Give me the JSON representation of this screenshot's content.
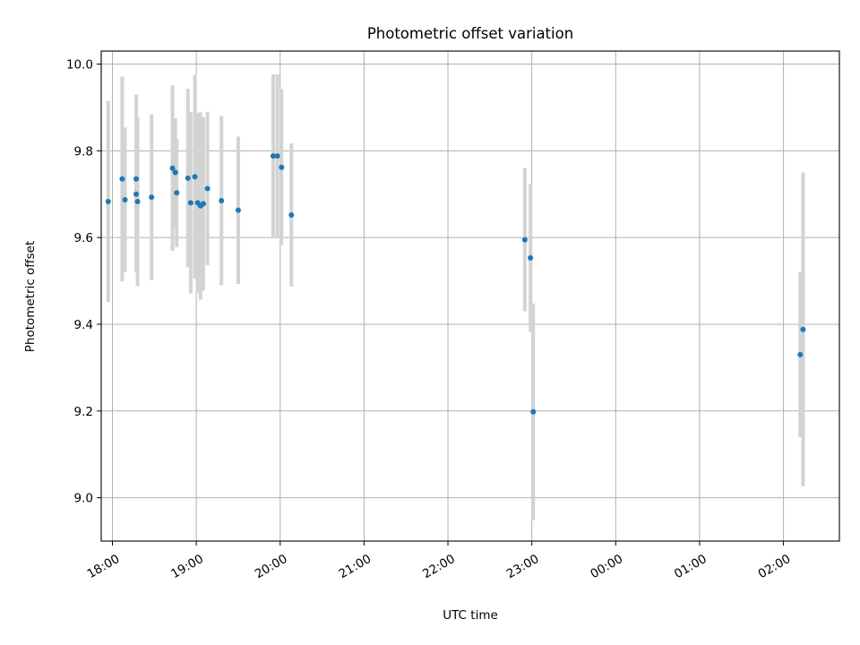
{
  "chart_data": {
    "type": "scatter",
    "title": "Photometric offset variation",
    "xlabel": "UTC time",
    "ylabel": "Photometric offset",
    "x_tick_labels": [
      "18:00",
      "19:00",
      "20:00",
      "21:00",
      "22:00",
      "23:00",
      "00:00",
      "01:00",
      "02:00"
    ],
    "y_ticks": [
      9.0,
      9.2,
      9.4,
      9.6,
      9.8,
      10.0
    ],
    "y_tick_labels": [
      "9.0",
      "9.2",
      "9.4",
      "9.6",
      "9.8",
      "10.0"
    ],
    "xlim": [
      "17:52",
      "02:40"
    ],
    "ylim": [
      8.9,
      10.03
    ],
    "grid": true,
    "colors": {
      "points": "#1f77b4",
      "errorbars": "#d3d3d3",
      "grid": "#b0b0b0"
    },
    "points": [
      {
        "t": "17:57",
        "y": 9.683,
        "err": 0.232
      },
      {
        "t": "18:07",
        "y": 9.735,
        "err": 0.236
      },
      {
        "t": "18:09",
        "y": 9.687,
        "err": 0.167
      },
      {
        "t": "18:17",
        "y": 9.735,
        "err": 0.195
      },
      {
        "t": "18:17",
        "y": 9.7,
        "err": 0.18
      },
      {
        "t": "18:18",
        "y": 9.683,
        "err": 0.195
      },
      {
        "t": "18:28",
        "y": 9.693,
        "err": 0.191
      },
      {
        "t": "18:43",
        "y": 9.76,
        "err": 0.191
      },
      {
        "t": "18:45",
        "y": 9.75,
        "err": 0.125
      },
      {
        "t": "18:46",
        "y": 9.703,
        "err": 0.125
      },
      {
        "t": "18:54",
        "y": 9.737,
        "err": 0.206
      },
      {
        "t": "18:56",
        "y": 9.68,
        "err": 0.209
      },
      {
        "t": "18:59",
        "y": 9.74,
        "err": 0.235
      },
      {
        "t": "19:01",
        "y": 9.68,
        "err": 0.207
      },
      {
        "t": "19:03",
        "y": 9.673,
        "err": 0.216
      },
      {
        "t": "19:05",
        "y": 9.678,
        "err": 0.2
      },
      {
        "t": "19:08",
        "y": 9.713,
        "err": 0.177
      },
      {
        "t": "19:18",
        "y": 9.685,
        "err": 0.195
      },
      {
        "t": "19:30",
        "y": 9.663,
        "err": 0.17
      },
      {
        "t": "19:55",
        "y": 9.788,
        "err": 0.188
      },
      {
        "t": "19:58",
        "y": 9.788,
        "err": 0.188
      },
      {
        "t": "20:01",
        "y": 9.762,
        "err": 0.18
      },
      {
        "t": "20:08",
        "y": 9.652,
        "err": 0.165
      },
      {
        "t": "22:55",
        "y": 9.595,
        "err": 0.165
      },
      {
        "t": "22:59",
        "y": 9.553,
        "err": 0.17
      },
      {
        "t": "23:01",
        "y": 9.198,
        "err": 0.25
      },
      {
        "t": "02:12",
        "y": 9.33,
        "err": 0.19
      },
      {
        "t": "02:14",
        "y": 9.388,
        "err": 0.362
      }
    ]
  }
}
